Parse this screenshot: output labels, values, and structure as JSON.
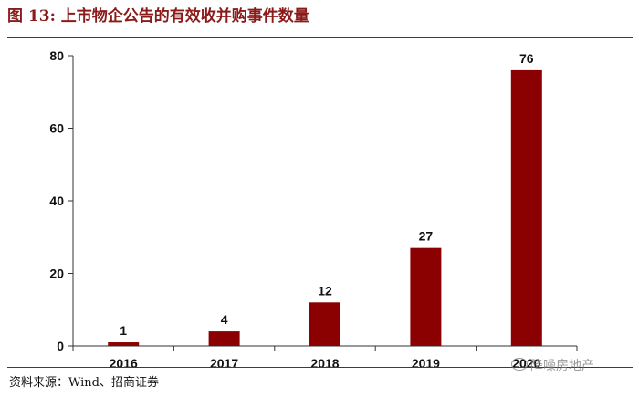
{
  "figure": {
    "label": "图 13:",
    "title": "上市物企公告的有效收并购事件数量",
    "source": "资料来源：Wind、招商证券",
    "watermark": "降噪房地产"
  },
  "chart_data": {
    "type": "bar",
    "categories": [
      "2016",
      "2017",
      "2018",
      "2019",
      "2020"
    ],
    "values": [
      1,
      4,
      12,
      27,
      76
    ],
    "data_labels": [
      "1",
      "4",
      "12",
      "27",
      "76"
    ],
    "ylim": [
      0,
      80
    ],
    "yticks": [
      0,
      20,
      40,
      60,
      80
    ],
    "ytick_labels": [
      "0",
      "20",
      "40",
      "60",
      "80"
    ],
    "bar_color": "#8B0000",
    "grid": false,
    "legend": "none",
    "title": "",
    "xlabel": "",
    "ylabel": ""
  }
}
